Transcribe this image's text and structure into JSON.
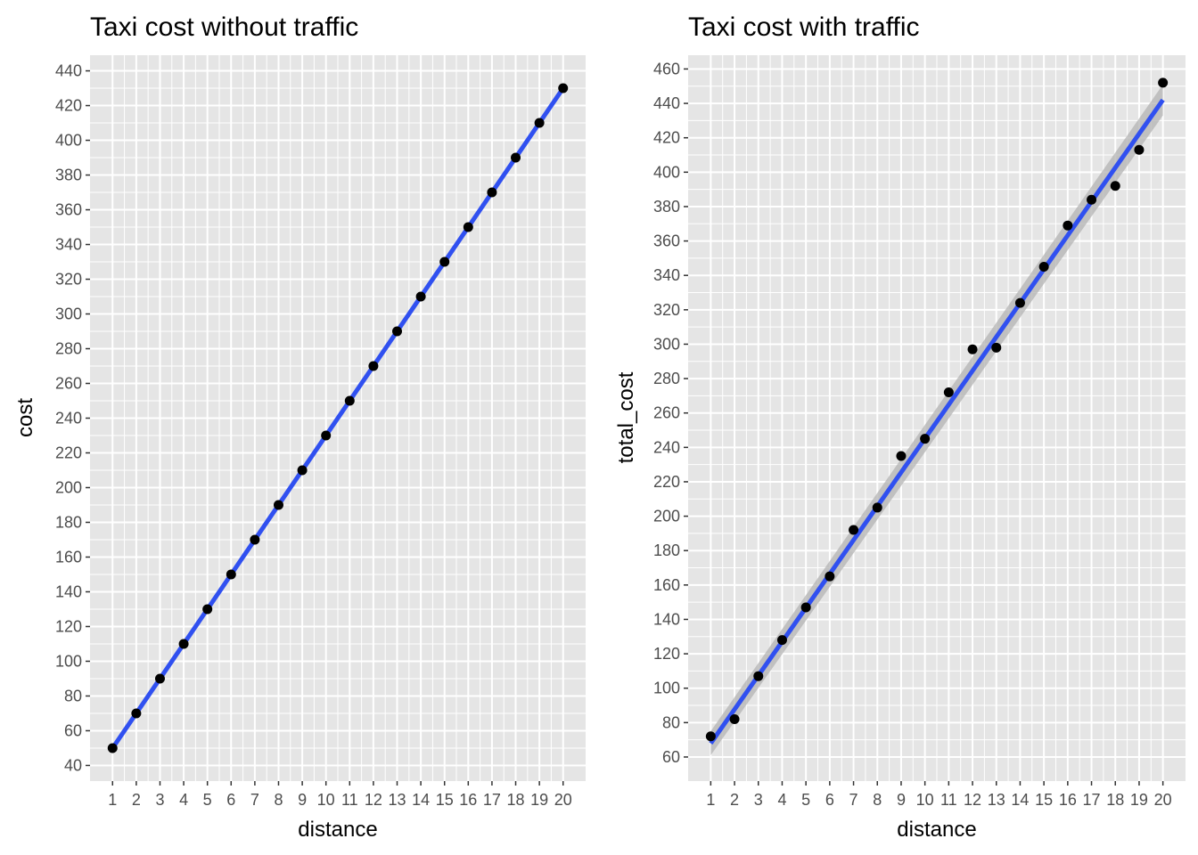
{
  "chart_data": [
    {
      "type": "scatter",
      "title": "Taxi cost without traffic",
      "xlabel": "distance",
      "ylabel": "cost",
      "x_ticks": [
        1,
        2,
        3,
        4,
        5,
        6,
        7,
        8,
        9,
        10,
        11,
        12,
        13,
        14,
        15,
        16,
        17,
        18,
        19,
        20
      ],
      "y_ticks": [
        40,
        60,
        80,
        100,
        120,
        140,
        160,
        180,
        200,
        220,
        240,
        260,
        280,
        300,
        320,
        340,
        360,
        380,
        400,
        420,
        440
      ],
      "xlim": [
        0.05,
        20.95
      ],
      "ylim": [
        31,
        449
      ],
      "grid": true,
      "colors": {
        "panel": "#e5e5e5",
        "grid": "#ffffff",
        "point": "#000000",
        "fit": "#3050f0",
        "ribbon": "#b3b3b3"
      },
      "series": [
        {
          "x": [
            1,
            2,
            3,
            4,
            5,
            6,
            7,
            8,
            9,
            10,
            11,
            12,
            13,
            14,
            15,
            16,
            17,
            18,
            19,
            20
          ],
          "y": [
            50,
            70,
            90,
            110,
            130,
            150,
            170,
            190,
            210,
            230,
            250,
            270,
            290,
            310,
            330,
            350,
            370,
            390,
            410,
            430
          ]
        }
      ],
      "fit": {
        "method": "linear",
        "x": [
          1,
          20
        ],
        "y": [
          50,
          430
        ],
        "se_ribbon": false
      }
    },
    {
      "type": "scatter",
      "title": "Taxi cost with traffic",
      "xlabel": "distance",
      "ylabel": "total_cost",
      "x_ticks": [
        1,
        2,
        3,
        4,
        5,
        6,
        7,
        8,
        9,
        10,
        11,
        12,
        13,
        14,
        15,
        16,
        17,
        18,
        19,
        20
      ],
      "y_ticks": [
        60,
        80,
        100,
        120,
        140,
        160,
        180,
        200,
        220,
        240,
        260,
        280,
        300,
        320,
        340,
        360,
        380,
        400,
        420,
        440,
        460
      ],
      "xlim": [
        0.05,
        20.95
      ],
      "ylim": [
        46,
        468
      ],
      "grid": true,
      "colors": {
        "panel": "#e5e5e5",
        "grid": "#ffffff",
        "point": "#000000",
        "fit": "#3050f0",
        "ribbon": "#b3b3b3"
      },
      "series": [
        {
          "x": [
            1,
            2,
            3,
            4,
            5,
            6,
            7,
            8,
            9,
            10,
            11,
            12,
            13,
            14,
            15,
            16,
            17,
            18,
            19,
            20
          ],
          "y": [
            72,
            82,
            107,
            128,
            147,
            165,
            192,
            205,
            235,
            245,
            272,
            297,
            298,
            324,
            345,
            369,
            384,
            392,
            413,
            452
          ]
        }
      ],
      "fit": {
        "method": "linear",
        "x": [
          1,
          20
        ],
        "y": [
          68,
          442
        ],
        "se_ribbon": true,
        "se_start": 7,
        "se_end": 9
      }
    }
  ]
}
